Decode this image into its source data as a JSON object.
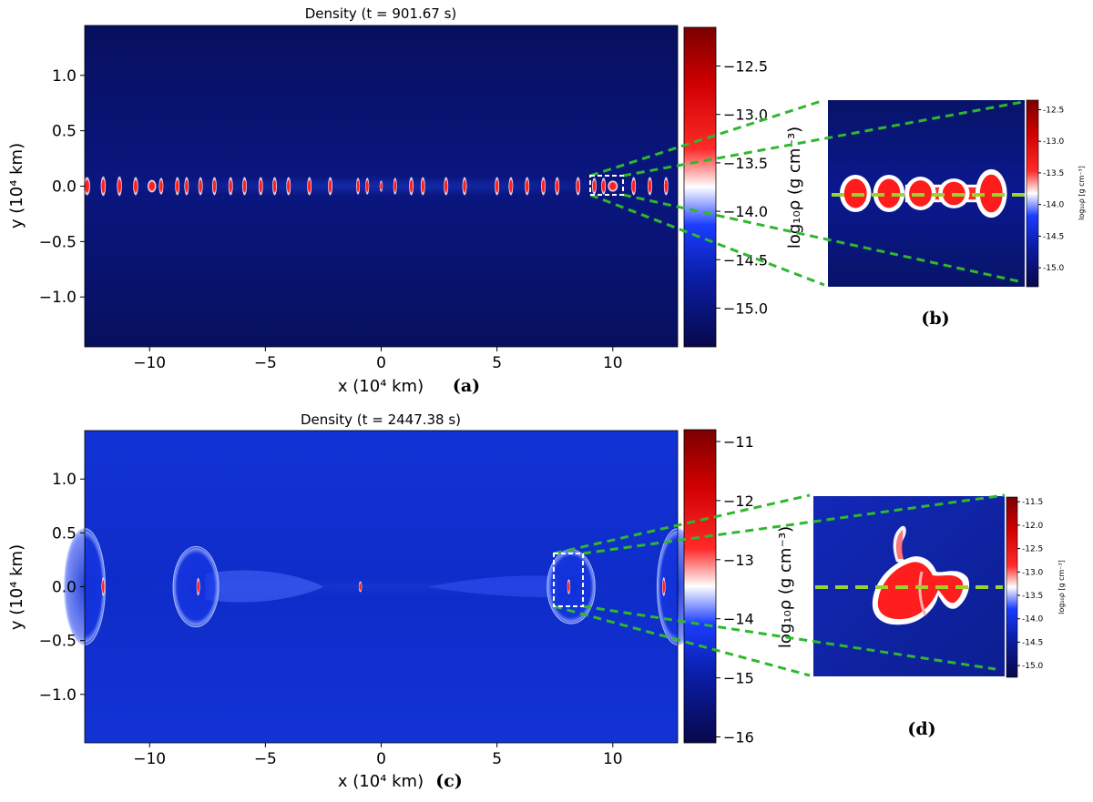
{
  "colors": {
    "colormap_stops": [
      "#08084a",
      "#0a1ea8",
      "#1a3cff",
      "#ffffff",
      "#ff2a2a",
      "#d00000",
      "#7a0000"
    ],
    "zoom_lines": "#2fb82f",
    "cut_line": "#9ad42a",
    "box_outline": "#ffffff"
  },
  "chart_data": [
    {
      "panel_label": "(a)",
      "type": "heatmap",
      "title": "Density (t = 901.67 s)",
      "xlabel": "x (10⁴ km)",
      "ylabel": "y (10⁴ km)",
      "xlim": [
        -12.8,
        12.8
      ],
      "ylim": [
        -1.45,
        1.45
      ],
      "xticks": [
        {
          "v": -10,
          "label": "−10"
        },
        {
          "v": -5,
          "label": "−5"
        },
        {
          "v": 0,
          "label": "0"
        },
        {
          "v": 5,
          "label": "5"
        },
        {
          "v": 10,
          "label": "10"
        }
      ],
      "yticks": [
        {
          "v": 1.0,
          "label": "1.0"
        },
        {
          "v": 0.5,
          "label": "0.5"
        },
        {
          "v": 0.0,
          "label": "0.0"
        },
        {
          "v": -0.5,
          "label": "−0.5"
        },
        {
          "v": -1.0,
          "label": "−1.0"
        }
      ],
      "colorbar": {
        "label": "log₁₀ρ  (g cm⁻³)",
        "range": [
          -15.4,
          -12.1
        ],
        "ticks": [
          {
            "v": -12.5,
            "label": "−12.5"
          },
          {
            "v": -13.0,
            "label": "−13.0"
          },
          {
            "v": -13.5,
            "label": "−13.5"
          },
          {
            "v": -14.0,
            "label": "−14.0"
          },
          {
            "v": -14.5,
            "label": "−14.5"
          },
          {
            "v": -15.0,
            "label": "−15.0"
          }
        ]
      },
      "background_level": -15.3,
      "blobs": [
        {
          "x": -12.7,
          "y": 0.0,
          "w": 0.25,
          "h": 0.13,
          "level": -12.7
        },
        {
          "x": -12.0,
          "y": 0.0,
          "w": 0.2,
          "h": 0.14,
          "level": -12.9
        },
        {
          "x": -11.3,
          "y": 0.0,
          "w": 0.2,
          "h": 0.14,
          "level": -12.8
        },
        {
          "x": -10.6,
          "y": 0.0,
          "w": 0.2,
          "h": 0.13,
          "level": -12.9
        },
        {
          "x": -9.9,
          "y": 0.0,
          "w": 0.35,
          "h": 0.09,
          "level": -12.6
        },
        {
          "x": -9.5,
          "y": 0.0,
          "w": 0.18,
          "h": 0.12,
          "level": -12.9
        },
        {
          "x": -8.8,
          "y": 0.0,
          "w": 0.18,
          "h": 0.13,
          "level": -12.9
        },
        {
          "x": -8.4,
          "y": 0.0,
          "w": 0.18,
          "h": 0.13,
          "level": -12.9
        },
        {
          "x": -7.8,
          "y": 0.0,
          "w": 0.18,
          "h": 0.13,
          "level": -12.9
        },
        {
          "x": -7.2,
          "y": 0.0,
          "w": 0.18,
          "h": 0.13,
          "level": -12.9
        },
        {
          "x": -6.5,
          "y": 0.0,
          "w": 0.18,
          "h": 0.13,
          "level": -12.9
        },
        {
          "x": -5.9,
          "y": 0.0,
          "w": 0.18,
          "h": 0.13,
          "level": -12.9
        },
        {
          "x": -5.2,
          "y": 0.0,
          "w": 0.18,
          "h": 0.13,
          "level": -12.9
        },
        {
          "x": -4.6,
          "y": 0.0,
          "w": 0.18,
          "h": 0.13,
          "level": -12.9
        },
        {
          "x": -4.0,
          "y": 0.0,
          "w": 0.18,
          "h": 0.13,
          "level": -12.9
        },
        {
          "x": -3.1,
          "y": 0.0,
          "w": 0.18,
          "h": 0.13,
          "level": -12.9
        },
        {
          "x": -2.2,
          "y": 0.0,
          "w": 0.18,
          "h": 0.13,
          "level": -12.9
        },
        {
          "x": -1.0,
          "y": 0.0,
          "w": 0.15,
          "h": 0.12,
          "level": -13.0
        },
        {
          "x": -0.6,
          "y": 0.0,
          "w": 0.15,
          "h": 0.12,
          "level": -13.0
        },
        {
          "x": 0.0,
          "y": 0.0,
          "w": 0.1,
          "h": 0.08,
          "level": -13.2
        },
        {
          "x": 0.6,
          "y": 0.0,
          "w": 0.15,
          "h": 0.12,
          "level": -13.0
        },
        {
          "x": 1.3,
          "y": 0.0,
          "w": 0.18,
          "h": 0.13,
          "level": -12.9
        },
        {
          "x": 1.8,
          "y": 0.0,
          "w": 0.18,
          "h": 0.13,
          "level": -12.9
        },
        {
          "x": 2.8,
          "y": 0.0,
          "w": 0.18,
          "h": 0.13,
          "level": -12.9
        },
        {
          "x": 3.6,
          "y": 0.0,
          "w": 0.18,
          "h": 0.13,
          "level": -12.9
        },
        {
          "x": 5.0,
          "y": 0.0,
          "w": 0.18,
          "h": 0.13,
          "level": -12.9
        },
        {
          "x": 5.6,
          "y": 0.0,
          "w": 0.18,
          "h": 0.13,
          "level": -12.9
        },
        {
          "x": 6.3,
          "y": 0.0,
          "w": 0.18,
          "h": 0.13,
          "level": -12.9
        },
        {
          "x": 7.0,
          "y": 0.0,
          "w": 0.18,
          "h": 0.13,
          "level": -12.9
        },
        {
          "x": 7.6,
          "y": 0.0,
          "w": 0.18,
          "h": 0.13,
          "level": -12.9
        },
        {
          "x": 8.5,
          "y": 0.0,
          "w": 0.18,
          "h": 0.13,
          "level": -12.9
        },
        {
          "x": 9.2,
          "y": 0.0,
          "w": 0.18,
          "h": 0.12,
          "level": -12.7
        },
        {
          "x": 9.6,
          "y": 0.0,
          "w": 0.18,
          "h": 0.12,
          "level": -12.7
        },
        {
          "x": 10.0,
          "y": 0.0,
          "w": 0.4,
          "h": 0.08,
          "level": -12.6
        },
        {
          "x": 10.9,
          "y": 0.0,
          "w": 0.18,
          "h": 0.13,
          "level": -12.9
        },
        {
          "x": 11.6,
          "y": 0.0,
          "w": 0.18,
          "h": 0.13,
          "level": -12.9
        },
        {
          "x": 12.3,
          "y": 0.0,
          "w": 0.18,
          "h": 0.13,
          "level": -12.9
        }
      ],
      "zoom_box": {
        "x0": 9.0,
        "x1": 10.5,
        "y0": -0.1,
        "y1": 0.1
      }
    },
    {
      "panel_label": "(b)",
      "type": "heatmap",
      "colorbar": {
        "label": "log₁₀ρ [g cm⁻³]",
        "range": [
          -15.3,
          -12.35
        ],
        "ticks": [
          {
            "v": -12.5,
            "label": "-12.5"
          },
          {
            "v": -13.0,
            "label": "-13.0"
          },
          {
            "v": -13.5,
            "label": "-13.5"
          },
          {
            "v": -14.0,
            "label": "-14.0"
          },
          {
            "v": -14.5,
            "label": "-14.5"
          },
          {
            "v": -15.0,
            "label": "-15.0"
          }
        ]
      },
      "blobs": [
        {
          "x": 0.14,
          "y": 0.5,
          "w": 0.08,
          "h": 0.2,
          "level": -12.5
        },
        {
          "x": 0.31,
          "y": 0.5,
          "w": 0.08,
          "h": 0.2,
          "level": -12.5
        },
        {
          "x": 0.47,
          "y": 0.5,
          "w": 0.08,
          "h": 0.18,
          "level": -12.5
        },
        {
          "x": 0.64,
          "y": 0.5,
          "w": 0.08,
          "h": 0.16,
          "level": -12.5
        },
        {
          "x": 0.83,
          "y": 0.5,
          "w": 0.08,
          "h": 0.26,
          "level": -12.5
        }
      ]
    },
    {
      "panel_label": "(c)",
      "type": "heatmap",
      "title": "Density (t = 2447.38 s)",
      "xlabel": "x (10⁴ km)",
      "ylabel": "y (10⁴ km)",
      "xlim": [
        -12.8,
        12.8
      ],
      "ylim": [
        -1.45,
        1.45
      ],
      "xticks": [
        {
          "v": -10,
          "label": "−10"
        },
        {
          "v": -5,
          "label": "−5"
        },
        {
          "v": 0,
          "label": "0"
        },
        {
          "v": 5,
          "label": "5"
        },
        {
          "v": 10,
          "label": "10"
        }
      ],
      "yticks": [
        {
          "v": 1.0,
          "label": "1.0"
        },
        {
          "v": 0.5,
          "label": "0.5"
        },
        {
          "v": 0.0,
          "label": "0.0"
        },
        {
          "v": -0.5,
          "label": "−0.5"
        },
        {
          "v": -1.0,
          "label": "−1.0"
        }
      ],
      "colorbar": {
        "label": "log₁₀ρ  (g cm⁻³)",
        "range": [
          -16.1,
          -10.8
        ],
        "ticks": [
          {
            "v": -11,
            "label": "−11"
          },
          {
            "v": -12,
            "label": "−12"
          },
          {
            "v": -13,
            "label": "−13"
          },
          {
            "v": -14,
            "label": "−14"
          },
          {
            "v": -15,
            "label": "−15"
          },
          {
            "v": -16,
            "label": "−16"
          }
        ]
      },
      "background_level": -15.1,
      "shells": [
        {
          "x": -12.8,
          "y": 0.0,
          "w": 0.9,
          "h": 0.55
        },
        {
          "x": -8.0,
          "y": 0.0,
          "w": 1.0,
          "h": 0.38
        },
        {
          "x": 8.2,
          "y": 0.0,
          "w": 1.05,
          "h": 0.35
        },
        {
          "x": 12.8,
          "y": 0.0,
          "w": 0.9,
          "h": 0.55
        }
      ],
      "blobs": [
        {
          "x": -12.0,
          "y": 0.0,
          "w": 0.12,
          "h": 0.14,
          "level": -12.0
        },
        {
          "x": -7.9,
          "y": 0.0,
          "w": 0.14,
          "h": 0.13,
          "level": -12.2
        },
        {
          "x": -0.9,
          "y": 0.0,
          "w": 0.1,
          "h": 0.08,
          "level": -12.0
        },
        {
          "x": 8.1,
          "y": 0.0,
          "w": 0.13,
          "h": 0.11,
          "level": -12.0
        },
        {
          "x": 12.2,
          "y": 0.0,
          "w": 0.12,
          "h": 0.14,
          "level": -12.0
        }
      ],
      "zoom_box": {
        "x0": 7.5,
        "x1": 8.8,
        "y0": -0.18,
        "y1": 0.3
      }
    },
    {
      "panel_label": "(d)",
      "type": "heatmap",
      "colorbar": {
        "label": "log₁₀ρ [g cm⁻³]",
        "range": [
          -15.25,
          -11.4
        ],
        "ticks": [
          {
            "v": -11.5,
            "label": "-11.5"
          },
          {
            "v": -12.0,
            "label": "-12.0"
          },
          {
            "v": -12.5,
            "label": "-12.5"
          },
          {
            "v": -13.0,
            "label": "-13.0"
          },
          {
            "v": -13.5,
            "label": "-13.5"
          },
          {
            "v": -14.0,
            "label": "-14.0"
          },
          {
            "v": -14.5,
            "label": "-14.5"
          },
          {
            "v": -15.0,
            "label": "-15.0"
          }
        ]
      }
    }
  ]
}
